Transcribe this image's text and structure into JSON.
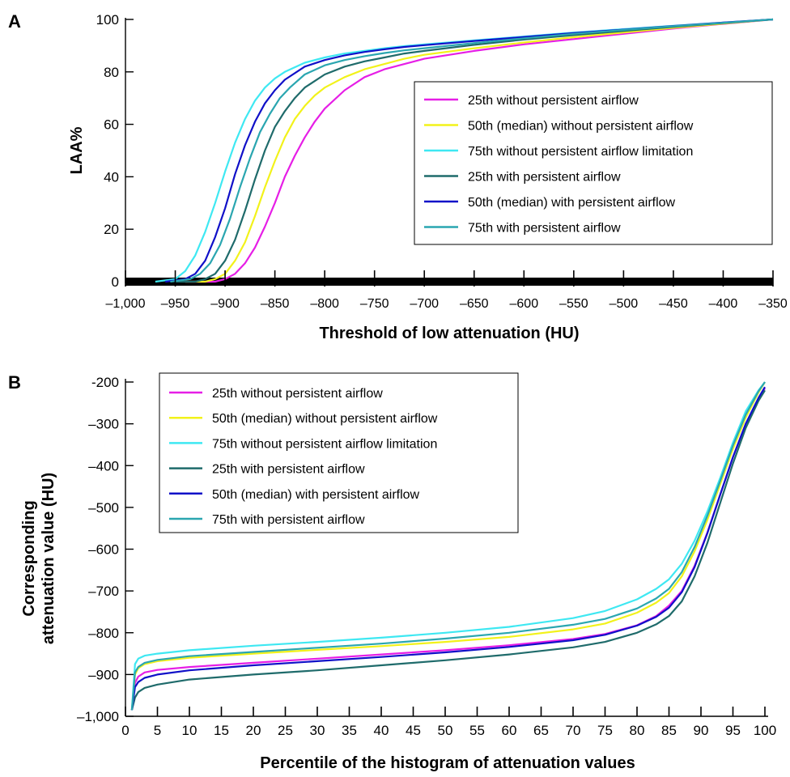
{
  "panels": {
    "a": {
      "letter": "A"
    },
    "b": {
      "letter": "B"
    }
  },
  "colors": {
    "magenta": "#e61ee6",
    "yellow": "#f2f21a",
    "cyan": "#3ee8f2",
    "dark_teal": "#1f6b6b",
    "blue": "#1010c8",
    "teal": "#2aa6b0"
  },
  "chart_data": [
    {
      "type": "line",
      "panel": "A",
      "xlabel": "Threshold of low attenuation (HU)",
      "ylabel": "LAA%",
      "xlim": [
        -1000,
        -350
      ],
      "ylim": [
        0,
        100
      ],
      "xticks": [
        -1000,
        -950,
        -900,
        -850,
        -800,
        -750,
        -700,
        -650,
        -600,
        -550,
        -500,
        -450,
        -400,
        -350
      ],
      "xtick_labels": [
        "–1,000",
        "–950",
        "–900",
        "–850",
        "–800",
        "–750",
        "–700",
        "–650",
        "–600",
        "–550",
        "–500",
        "–450",
        "–400",
        "–350"
      ],
      "yticks": [
        0,
        20,
        40,
        60,
        80,
        100
      ],
      "ytick_labels": [
        "0",
        "20",
        "40",
        "60",
        "80",
        "100"
      ],
      "legend_position": "right",
      "series": [
        {
          "name": "25th without persistent airflow",
          "color": "#e61ee6",
          "x": [
            -940,
            -910,
            -900,
            -890,
            -880,
            -870,
            -860,
            -850,
            -840,
            -830,
            -820,
            -810,
            -800,
            -780,
            -760,
            -740,
            -720,
            -700,
            -650,
            -600,
            -550,
            -500,
            -450,
            -400,
            -350
          ],
          "y": [
            0,
            0,
            1,
            3,
            7,
            13,
            21,
            30,
            40,
            48,
            55,
            61,
            66,
            73,
            78,
            81,
            83,
            85,
            88,
            90.5,
            92.5,
            94.5,
            96.5,
            98.3,
            100
          ]
        },
        {
          "name": "50th (median) without persistent airflow",
          "color": "#f2f21a",
          "x": [
            -940,
            -920,
            -910,
            -900,
            -890,
            -880,
            -870,
            -860,
            -850,
            -840,
            -830,
            -820,
            -810,
            -800,
            -780,
            -760,
            -740,
            -720,
            -700,
            -650,
            -600,
            -550,
            -500,
            -450,
            -400,
            -350
          ],
          "y": [
            0,
            0,
            1,
            3,
            8,
            15,
            25,
            36,
            46,
            55,
            62,
            67,
            71,
            74,
            78,
            81,
            83,
            85,
            86.5,
            89,
            91.2,
            93.2,
            95,
            96.8,
            98.4,
            100
          ]
        },
        {
          "name": "75th without persistent airflow limitation",
          "color": "#3ee8f2",
          "x": [
            -970,
            -950,
            -940,
            -930,
            -920,
            -910,
            -900,
            -890,
            -880,
            -870,
            -860,
            -850,
            -840,
            -820,
            -800,
            -780,
            -760,
            -740,
            -720,
            -700,
            -650,
            -600,
            -550,
            -500,
            -450,
            -400,
            -350
          ],
          "y": [
            0,
            1,
            4,
            10,
            19,
            30,
            42,
            53,
            62,
            69,
            74,
            77.5,
            80,
            83.5,
            85.5,
            87,
            88,
            89,
            89.8,
            90.5,
            92,
            93.5,
            95,
            96.3,
            97.6,
            98.8,
            100
          ]
        },
        {
          "name": "25th with persistent airflow",
          "color": "#1f6b6b",
          "x": [
            -950,
            -930,
            -920,
            -910,
            -900,
            -890,
            -880,
            -870,
            -860,
            -850,
            -840,
            -830,
            -820,
            -800,
            -780,
            -760,
            -740,
            -720,
            -700,
            -650,
            -600,
            -550,
            -500,
            -450,
            -400,
            -350
          ],
          "y": [
            0,
            0,
            1,
            3,
            8,
            16,
            27,
            39,
            50,
            59,
            65,
            70,
            74,
            79,
            82,
            84,
            85.5,
            87,
            88,
            90.3,
            92.3,
            94,
            95.6,
            97.2,
            98.6,
            100
          ]
        },
        {
          "name": "50th (median) with persistent airflow",
          "color": "#1010c8",
          "x": [
            -960,
            -940,
            -930,
            -920,
            -910,
            -900,
            -890,
            -880,
            -870,
            -860,
            -850,
            -840,
            -820,
            -800,
            -780,
            -760,
            -740,
            -720,
            -700,
            -650,
            -600,
            -550,
            -500,
            -450,
            -400,
            -350
          ],
          "y": [
            0,
            1,
            3,
            8,
            17,
            28,
            41,
            52,
            61,
            68,
            73,
            77,
            82,
            84.5,
            86.3,
            87.6,
            88.6,
            89.5,
            90.2,
            91.8,
            93.3,
            94.8,
            96.1,
            97.5,
            98.8,
            100
          ]
        },
        {
          "name": "75th with persistent airflow",
          "color": "#2aa6b0",
          "x": [
            -955,
            -935,
            -925,
            -915,
            -905,
            -895,
            -885,
            -875,
            -865,
            -855,
            -845,
            -835,
            -820,
            -800,
            -780,
            -760,
            -740,
            -720,
            -700,
            -650,
            -600,
            -550,
            -500,
            -450,
            -400,
            -350
          ],
          "y": [
            0,
            1,
            3,
            7,
            14,
            24,
            36,
            47,
            57,
            64,
            70,
            74,
            79,
            82.5,
            84.5,
            86,
            87.2,
            88.2,
            89,
            91,
            92.8,
            94.5,
            96,
            97.4,
            98.7,
            100
          ]
        }
      ]
    },
    {
      "type": "line",
      "panel": "B",
      "xlabel": "Percentile of the histogram of attenuation values",
      "ylabel": [
        "Corresponding",
        "attenuation value (HU)"
      ],
      "xlim": [
        0,
        100
      ],
      "ylim": [
        -1000,
        -200
      ],
      "xticks": [
        0,
        5,
        10,
        15,
        20,
        25,
        30,
        35,
        40,
        45,
        50,
        55,
        60,
        65,
        70,
        75,
        80,
        85,
        90,
        95,
        100
      ],
      "xtick_labels": [
        "0",
        "5",
        "10",
        "15",
        "20",
        "25",
        "30",
        "35",
        "40",
        "45",
        "50",
        "55",
        "60",
        "65",
        "70",
        "75",
        "80",
        "85",
        "90",
        "95",
        "100"
      ],
      "yticks": [
        -1000,
        -900,
        -800,
        -700,
        -600,
        -500,
        -400,
        -300,
        -200
      ],
      "ytick_labels": [
        "–1,000",
        "–900",
        "–800",
        "–700",
        "–600",
        "–500",
        "–400",
        "–300",
        "-200"
      ],
      "legend_position": "top-left",
      "series": [
        {
          "name": "25th without persistent airflow",
          "color": "#e61ee6",
          "x": [
            1,
            1.5,
            2,
            3,
            5,
            10,
            20,
            30,
            40,
            50,
            60,
            70,
            75,
            80,
            83,
            85,
            87,
            89,
            91,
            93,
            95,
            97,
            99,
            100
          ],
          "y": [
            -985,
            -920,
            -905,
            -895,
            -889,
            -882,
            -872,
            -862,
            -852,
            -842,
            -830,
            -815,
            -803,
            -782,
            -760,
            -735,
            -700,
            -640,
            -560,
            -470,
            -380,
            -300,
            -240,
            -215
          ]
        },
        {
          "name": "50th (median) without persistent airflow",
          "color": "#f2f21a",
          "x": [
            1,
            1.5,
            2,
            3,
            5,
            10,
            20,
            30,
            40,
            50,
            60,
            70,
            75,
            80,
            83,
            85,
            87,
            89,
            91,
            93,
            95,
            97,
            99,
            100
          ],
          "y": [
            -985,
            -900,
            -885,
            -875,
            -868,
            -860,
            -850,
            -841,
            -832,
            -822,
            -810,
            -792,
            -778,
            -752,
            -728,
            -705,
            -665,
            -605,
            -530,
            -445,
            -360,
            -285,
            -225,
            -200
          ]
        },
        {
          "name": "75th without persistent airflow limitation",
          "color": "#3ee8f2",
          "x": [
            1,
            1.5,
            2,
            3,
            5,
            10,
            20,
            30,
            40,
            50,
            60,
            70,
            75,
            80,
            83,
            85,
            87,
            89,
            91,
            93,
            95,
            97,
            99,
            100
          ],
          "y": [
            -985,
            -875,
            -862,
            -855,
            -850,
            -842,
            -831,
            -822,
            -812,
            -800,
            -786,
            -765,
            -748,
            -720,
            -695,
            -672,
            -635,
            -580,
            -510,
            -430,
            -345,
            -270,
            -220,
            -200
          ]
        },
        {
          "name": "25th with persistent airflow",
          "color": "#1f6b6b",
          "x": [
            1,
            1.5,
            2,
            3,
            5,
            10,
            20,
            30,
            40,
            50,
            60,
            70,
            75,
            80,
            83,
            85,
            87,
            89,
            91,
            93,
            95,
            97,
            99,
            100
          ],
          "y": [
            -985,
            -955,
            -942,
            -932,
            -924,
            -912,
            -900,
            -890,
            -878,
            -866,
            -852,
            -835,
            -822,
            -800,
            -780,
            -760,
            -725,
            -665,
            -585,
            -490,
            -395,
            -310,
            -245,
            -220
          ]
        },
        {
          "name": "50th (median) with persistent airflow",
          "color": "#1010c8",
          "x": [
            1,
            1.5,
            2,
            3,
            5,
            10,
            20,
            30,
            40,
            50,
            60,
            70,
            75,
            80,
            83,
            85,
            87,
            89,
            91,
            93,
            95,
            97,
            99,
            100
          ],
          "y": [
            -985,
            -930,
            -918,
            -908,
            -900,
            -890,
            -878,
            -868,
            -858,
            -847,
            -834,
            -818,
            -805,
            -783,
            -762,
            -740,
            -703,
            -643,
            -562,
            -470,
            -380,
            -300,
            -238,
            -212
          ]
        },
        {
          "name": "75th with persistent airflow",
          "color": "#2aa6b0",
          "x": [
            1,
            1.5,
            2,
            3,
            5,
            10,
            20,
            30,
            40,
            50,
            60,
            70,
            75,
            80,
            83,
            85,
            87,
            89,
            91,
            93,
            95,
            97,
            99,
            100
          ],
          "y": [
            -985,
            -895,
            -882,
            -872,
            -865,
            -856,
            -846,
            -836,
            -826,
            -814,
            -800,
            -781,
            -767,
            -742,
            -718,
            -695,
            -655,
            -595,
            -520,
            -437,
            -352,
            -278,
            -222,
            -200
          ]
        }
      ]
    }
  ]
}
